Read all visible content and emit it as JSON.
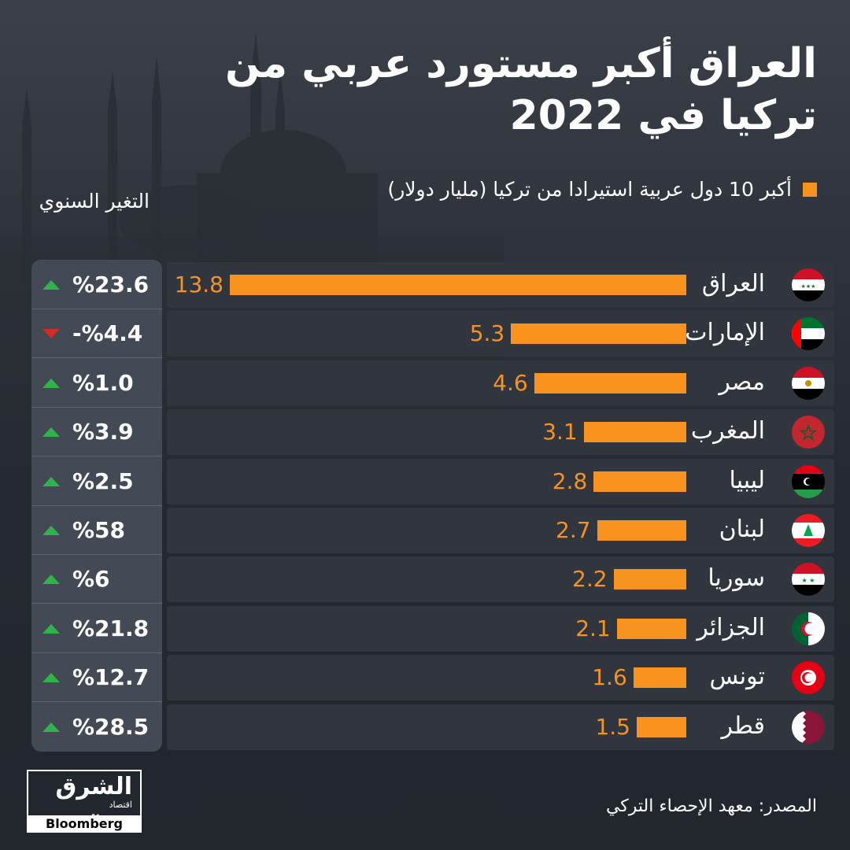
{
  "title": "العراق أكبر مستورد عربي من تركيا في 2022",
  "legend_label": "أكبر 10 دول عربية استيرادا من تركيا (مليار دولار)",
  "change_header": "التغير السنوي",
  "source": "المصدر: معهد الإحصاء التركي",
  "logo": {
    "name": "الشرق",
    "sub": "اقتصاد",
    "with": "مع",
    "partner": "Bloomberg"
  },
  "colors": {
    "bar": "#f7931e",
    "up": "#2fb44a",
    "down": "#d42a2a"
  },
  "chart_data": {
    "type": "bar",
    "orientation": "horizontal",
    "categories": [
      "العراق",
      "الإمارات",
      "مصر",
      "المغرب",
      "ليبيا",
      "لبنان",
      "سوريا",
      "الجزائر",
      "تونس",
      "قطر"
    ],
    "values": [
      13.8,
      5.3,
      4.6,
      3.1,
      2.8,
      2.7,
      2.2,
      2.1,
      1.6,
      1.5
    ],
    "value_labels": [
      "13.8",
      "5.3",
      "4.6",
      "3.1",
      "2.8",
      "2.7",
      "2.2",
      "2.1",
      "1.6",
      "1.5"
    ],
    "annual_change": [
      "%23.6",
      "-%4.4",
      "%1.0",
      "%3.9",
      "%2.5",
      "%58",
      "%6",
      "%21.8",
      "%12.7",
      "%28.5"
    ],
    "change_direction": [
      "up",
      "down",
      "up",
      "up",
      "up",
      "up",
      "up",
      "up",
      "up",
      "up"
    ],
    "flags": [
      "iraq-flag-icon",
      "uae-flag-icon",
      "egypt-flag-icon",
      "morocco-flag-icon",
      "libya-flag-icon",
      "lebanon-flag-icon",
      "syria-flag-icon",
      "algeria-flag-icon",
      "tunisia-flag-icon",
      "qatar-flag-icon"
    ]
  }
}
